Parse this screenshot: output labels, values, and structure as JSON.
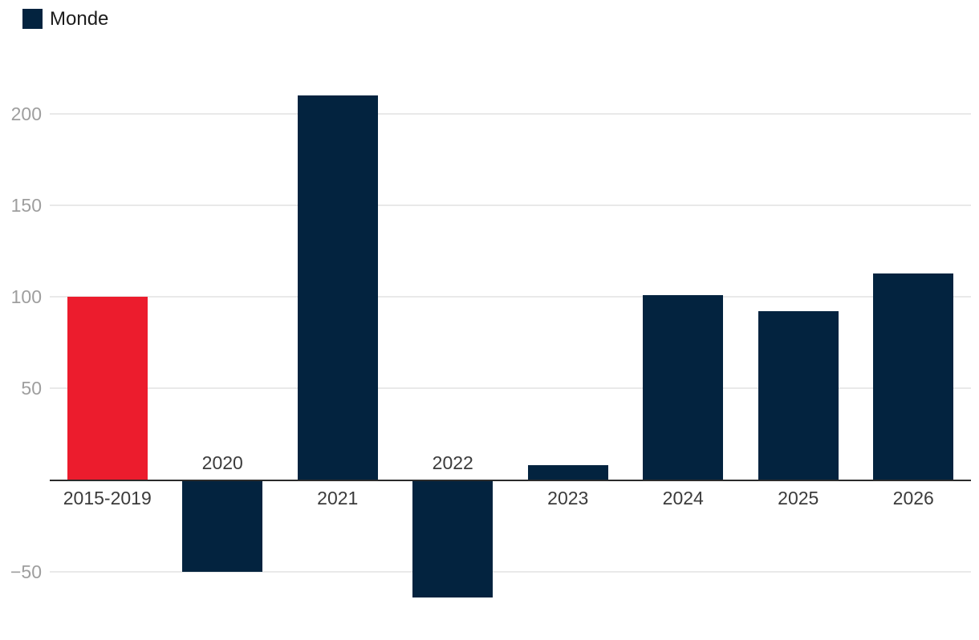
{
  "legend": {
    "label": "Monde",
    "color": "#03233f"
  },
  "colors": {
    "bar_default": "#03233f",
    "bar_highlight": "#ec1c2d",
    "gridline": "#e9e9e9",
    "axis_line": "#2b2b2b",
    "tick_label": "#9e9e9e",
    "category_label": "#3b3b3b",
    "background": "#ffffff"
  },
  "chart_data": {
    "type": "bar",
    "categories": [
      "2015-2019",
      "2020",
      "2021",
      "2022",
      "2023",
      "2024",
      "2025",
      "2026"
    ],
    "values": [
      100,
      -50,
      210,
      -64,
      8,
      101,
      92,
      113
    ],
    "bar_colors": [
      "#ec1c2d",
      "#03233f",
      "#03233f",
      "#03233f",
      "#03233f",
      "#03233f",
      "#03233f",
      "#03233f"
    ],
    "series": [
      {
        "name": "Monde",
        "values": [
          100,
          -50,
          210,
          -64,
          8,
          101,
          92,
          113
        ]
      }
    ],
    "y_ticks": [
      200,
      150,
      100,
      50,
      -50
    ],
    "ylim": [
      -75,
      215
    ],
    "grid": true,
    "legend_position": "top-left",
    "x_label_placement": "opposite-side-of-bar"
  }
}
